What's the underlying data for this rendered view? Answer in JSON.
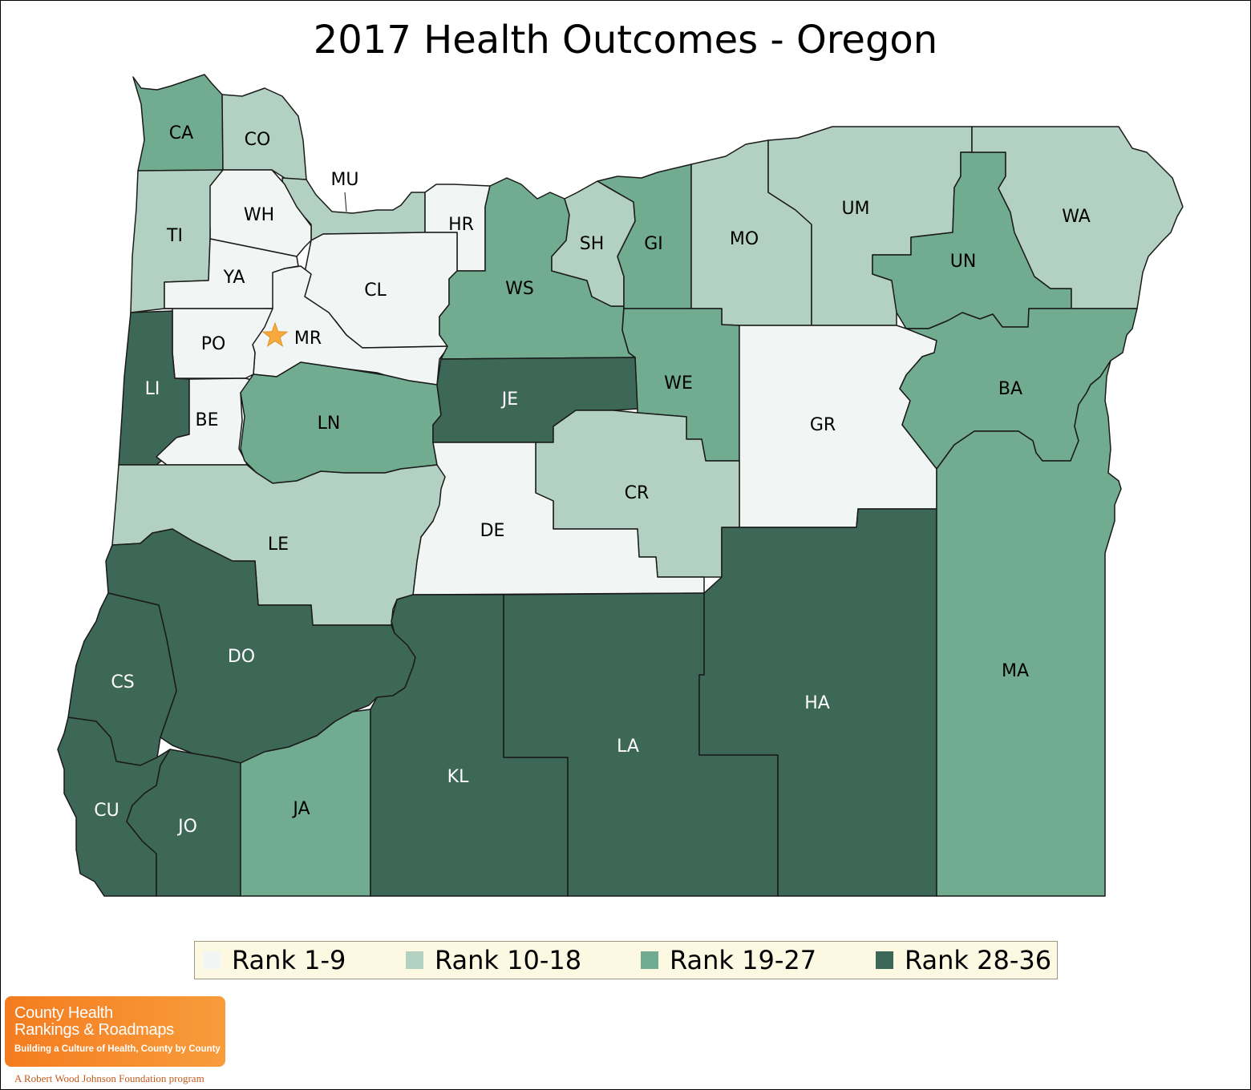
{
  "title": "2017 Health Outcomes - Oregon",
  "legend": [
    {
      "label": "Rank 1-9",
      "color": "#f1f5f3"
    },
    {
      "label": "Rank 10-18",
      "color": "#b2d1c2"
    },
    {
      "label": "Rank 19-27",
      "color": "#71ab90"
    },
    {
      "label": "Rank 28-36",
      "color": "#3d6756"
    }
  ],
  "capital_marker": {
    "icon": "star-icon",
    "color": "#f8aa3c",
    "county": "MR"
  },
  "counties": [
    {
      "abbr": "CA",
      "group": 2
    },
    {
      "abbr": "CO",
      "group": 1
    },
    {
      "abbr": "MU",
      "group": 1
    },
    {
      "abbr": "WH",
      "group": 0
    },
    {
      "abbr": "TI",
      "group": 1
    },
    {
      "abbr": "YA",
      "group": 0
    },
    {
      "abbr": "HR",
      "group": 0
    },
    {
      "abbr": "CL",
      "group": 0
    },
    {
      "abbr": "MR",
      "group": 0
    },
    {
      "abbr": "PO",
      "group": 0
    },
    {
      "abbr": "LI",
      "group": 3
    },
    {
      "abbr": "BE",
      "group": 0
    },
    {
      "abbr": "LN",
      "group": 2
    },
    {
      "abbr": "WS",
      "group": 2
    },
    {
      "abbr": "SH",
      "group": 1
    },
    {
      "abbr": "GI",
      "group": 2
    },
    {
      "abbr": "MO",
      "group": 1
    },
    {
      "abbr": "UM",
      "group": 1
    },
    {
      "abbr": "UN",
      "group": 2
    },
    {
      "abbr": "WA",
      "group": 1
    },
    {
      "abbr": "WE",
      "group": 2
    },
    {
      "abbr": "JE",
      "group": 3
    },
    {
      "abbr": "GR",
      "group": 0
    },
    {
      "abbr": "BA",
      "group": 2
    },
    {
      "abbr": "CR",
      "group": 1
    },
    {
      "abbr": "DE",
      "group": 0
    },
    {
      "abbr": "LE",
      "group": 1
    },
    {
      "abbr": "DO",
      "group": 3
    },
    {
      "abbr": "CS",
      "group": 3
    },
    {
      "abbr": "CU",
      "group": 3
    },
    {
      "abbr": "JO",
      "group": 3
    },
    {
      "abbr": "JA",
      "group": 2
    },
    {
      "abbr": "KL",
      "group": 3
    },
    {
      "abbr": "LA",
      "group": 3
    },
    {
      "abbr": "HA",
      "group": 3
    },
    {
      "abbr": "MA",
      "group": 2
    }
  ],
  "logo": {
    "line1": "County Health",
    "line2": "Rankings & Roadmaps",
    "tagline": "Building a Culture of Health, County by County",
    "sub": "A Robert Wood Johnson Foundation program"
  }
}
